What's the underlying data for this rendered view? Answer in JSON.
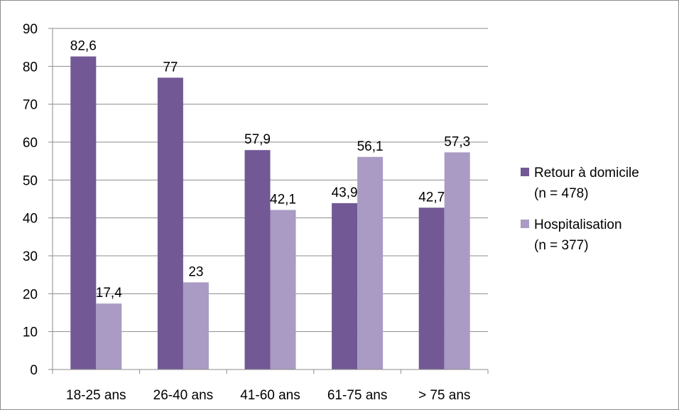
{
  "chart_data": {
    "type": "bar",
    "categories": [
      "18-25 ans",
      "26-40 ans",
      "41-60 ans",
      "61-75 ans",
      "> 75 ans"
    ],
    "series": [
      {
        "name": "Retour à domicile (n = 478)",
        "legend_lines": [
          "Retour à domicile",
          "(n = 478)"
        ],
        "color": "#725895",
        "values": [
          82.6,
          77,
          57.9,
          43.9,
          42.7
        ],
        "labels": [
          "82,6",
          "77",
          "57,9",
          "43,9",
          "42,7"
        ]
      },
      {
        "name": "Hospitalisation (n = 377)",
        "legend_lines": [
          "Hospitalisation",
          "(n = 377)"
        ],
        "color": "#a99bc3",
        "values": [
          17.4,
          23,
          42.1,
          56.1,
          57.3
        ],
        "labels": [
          "17,4",
          "23",
          "42,1",
          "56,1",
          "57,3"
        ]
      }
    ],
    "title": "",
    "xlabel": "",
    "ylabel": "",
    "ylim": [
      0,
      90
    ],
    "yticks": [
      0,
      10,
      20,
      30,
      40,
      50,
      60,
      70,
      80,
      90
    ],
    "grid": true,
    "legend_position": "right",
    "gridline_color": "#8c8c8c",
    "axis_color": "#8c8c8c"
  }
}
